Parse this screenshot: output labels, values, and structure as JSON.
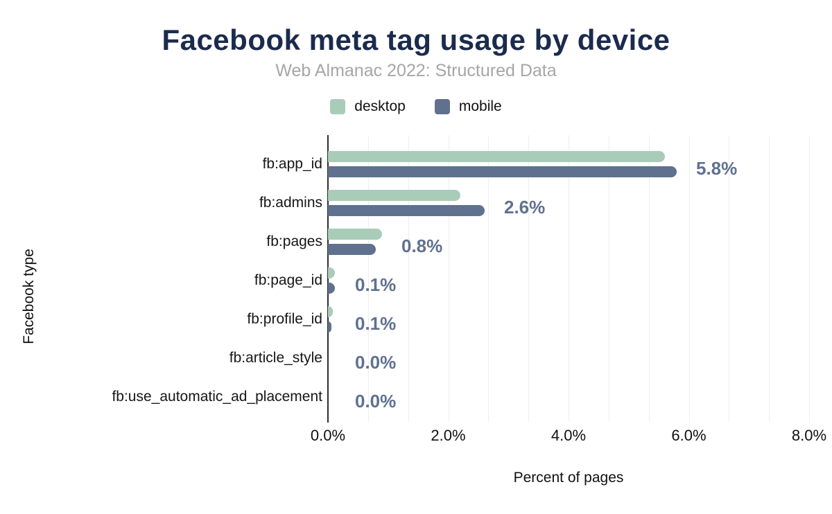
{
  "header": {
    "title": "Facebook meta tag usage by device",
    "subtitle": "Web Almanac 2022: Structured Data"
  },
  "legend": [
    {
      "label": "desktop",
      "color": "#a9ccb9",
      "icon": "desktop-swatch"
    },
    {
      "label": "mobile",
      "color": "#5f718e",
      "icon": "mobile-swatch"
    }
  ],
  "colors": {
    "title": "#1b2b4d",
    "subtitle": "#a6a6a6",
    "desktop": "#a9ccb9",
    "mobile": "#5f718e",
    "value_label": "#5f7191",
    "gridline": "#eeeeee",
    "axis_line": "#2d2d2d",
    "background": "#ffffff"
  },
  "chart_data": {
    "type": "bar",
    "orientation": "horizontal",
    "title": "Facebook meta tag usage by device",
    "subtitle": "Web Almanac 2022: Structured Data",
    "xlabel": "Percent of pages",
    "ylabel": "Facebook type",
    "categories": [
      "fb:app_id",
      "fb:admins",
      "fb:pages",
      "fb:page_id",
      "fb:profile_id",
      "fb:article_style",
      "fb:use_automatic_ad_placement"
    ],
    "series": [
      {
        "name": "desktop",
        "values": [
          5.6,
          2.2,
          0.9,
          0.12,
          0.08,
          0.0,
          0.0
        ]
      },
      {
        "name": "mobile",
        "values": [
          5.8,
          2.6,
          0.8,
          0.12,
          0.06,
          0.0,
          0.0
        ]
      }
    ],
    "value_labels": [
      "5.8%",
      "2.6%",
      "0.8%",
      "0.1%",
      "0.1%",
      "0.0%",
      "0.0%"
    ],
    "x_ticks": [
      "0.0%",
      "2.0%",
      "4.0%",
      "6.0%",
      "8.0%"
    ],
    "xlim": [
      0,
      8
    ],
    "grid": "vertical, minor lines every 2/3%",
    "legend_position": "top"
  }
}
